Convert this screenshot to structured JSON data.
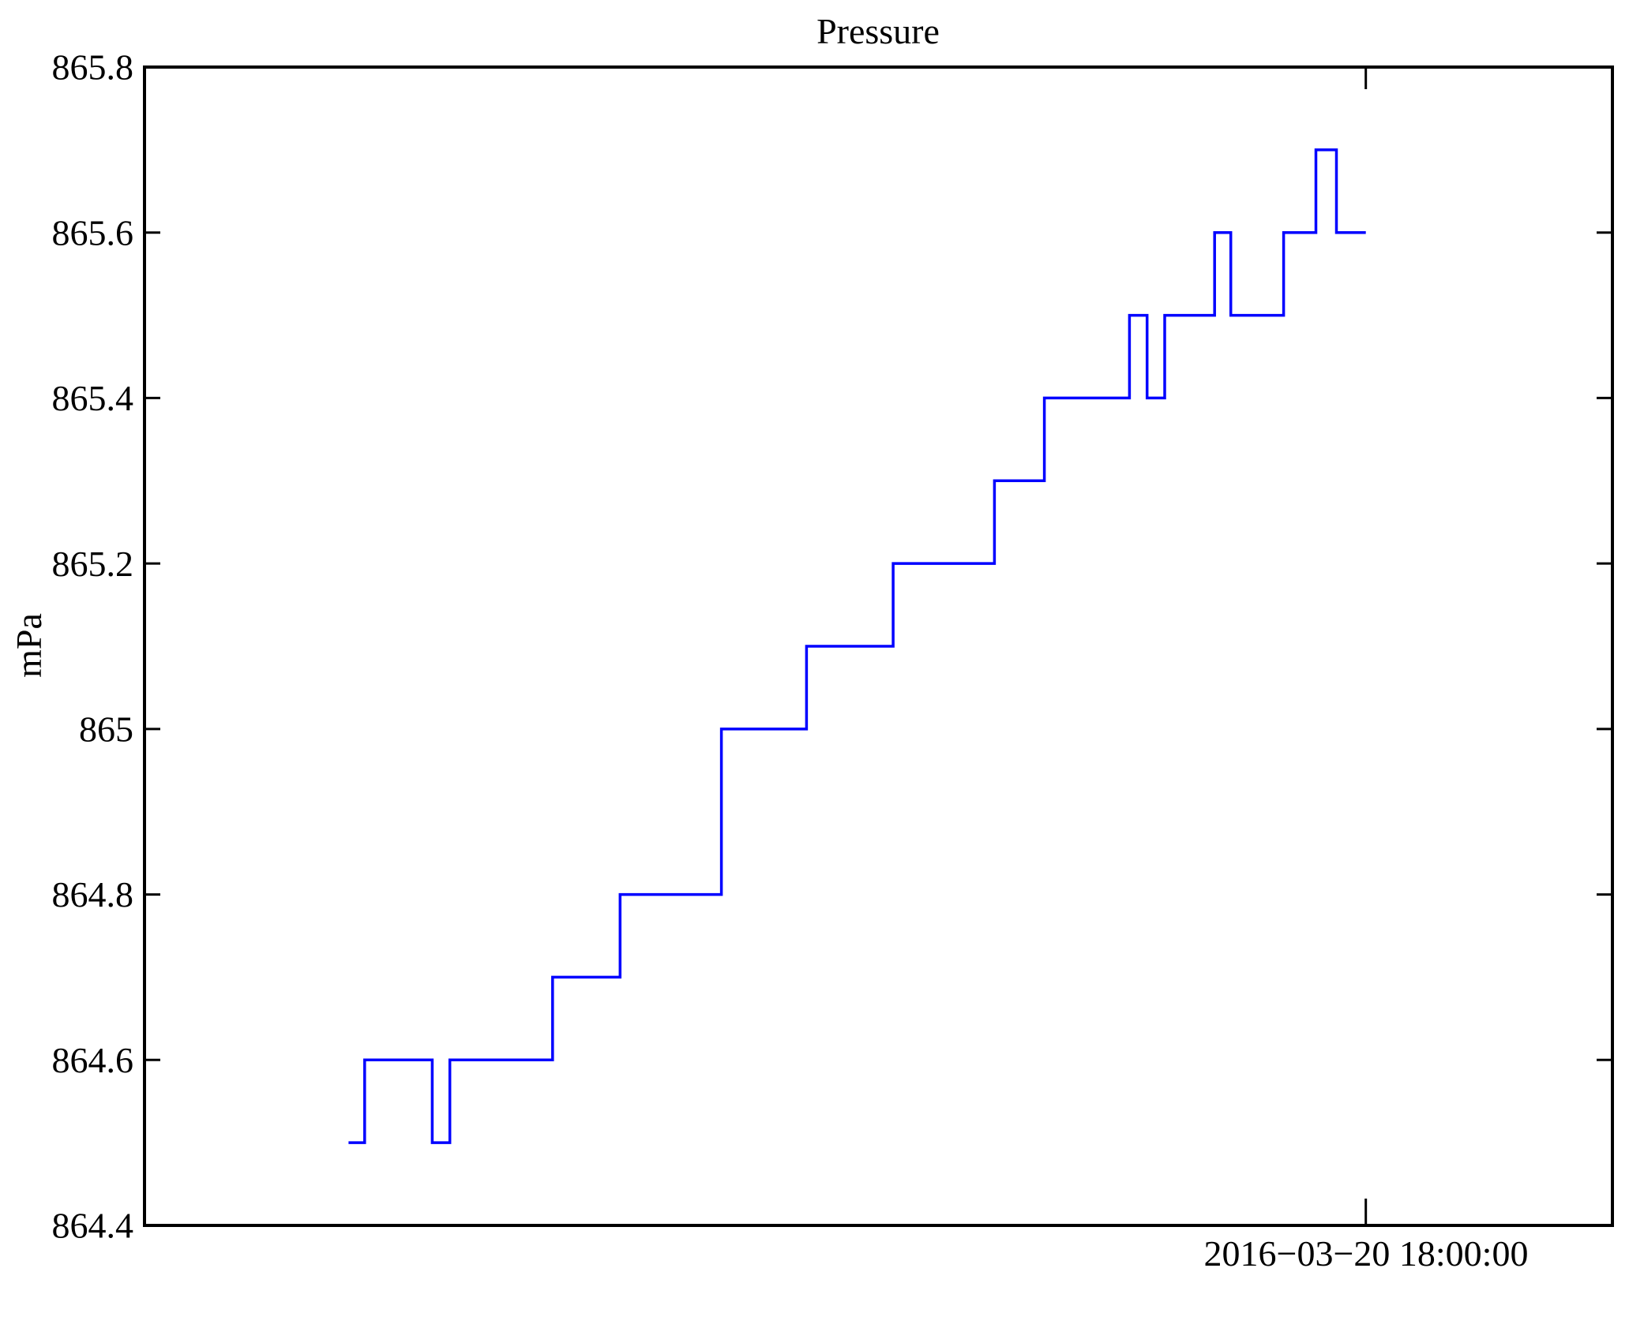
{
  "chart_data": {
    "type": "line",
    "line_style": "steps",
    "title": "Pressure",
    "ylabel": "mPa",
    "xlabel": "",
    "grid": false,
    "legend": "none",
    "series_color": "#0000ff",
    "axis_color": "#000000",
    "ylim": [
      864.4,
      865.8
    ],
    "ytick_step": 0.2,
    "yticks": [
      864.4,
      864.6,
      864.8,
      865,
      865.2,
      865.4,
      865.6,
      865.8
    ],
    "ytick_labels": [
      "864.4",
      "864.6",
      "864.8",
      "865",
      "865.2",
      "865.4",
      "865.6",
      "865.8"
    ],
    "xtick": {
      "label": "2016−03−20 18:00:00",
      "frac": 0.832
    },
    "series": [
      {
        "name": "Pressure",
        "unit": "mPa",
        "segments": [
          {
            "from": 0.139,
            "to": 0.15,
            "mPa": 864.5
          },
          {
            "from": 0.15,
            "to": 0.196,
            "mPa": 864.6
          },
          {
            "from": 0.196,
            "to": 0.208,
            "mPa": 864.5
          },
          {
            "from": 0.208,
            "to": 0.278,
            "mPa": 864.6
          },
          {
            "from": 0.278,
            "to": 0.324,
            "mPa": 864.7
          },
          {
            "from": 0.324,
            "to": 0.393,
            "mPa": 864.8
          },
          {
            "from": 0.393,
            "to": 0.451,
            "mPa": 865.0
          },
          {
            "from": 0.451,
            "to": 0.51,
            "mPa": 865.1
          },
          {
            "from": 0.51,
            "to": 0.579,
            "mPa": 865.2
          },
          {
            "from": 0.579,
            "to": 0.613,
            "mPa": 865.3
          },
          {
            "from": 0.613,
            "to": 0.671,
            "mPa": 865.4
          },
          {
            "from": 0.671,
            "to": 0.683,
            "mPa": 865.5
          },
          {
            "from": 0.683,
            "to": 0.695,
            "mPa": 865.4
          },
          {
            "from": 0.695,
            "to": 0.729,
            "mPa": 865.5
          },
          {
            "from": 0.729,
            "to": 0.74,
            "mPa": 865.6
          },
          {
            "from": 0.74,
            "to": 0.776,
            "mPa": 865.5
          },
          {
            "from": 0.776,
            "to": 0.798,
            "mPa": 865.6
          },
          {
            "from": 0.798,
            "to": 0.812,
            "mPa": 865.7
          },
          {
            "from": 0.812,
            "to": 0.832,
            "mPa": 865.6
          }
        ]
      }
    ]
  }
}
